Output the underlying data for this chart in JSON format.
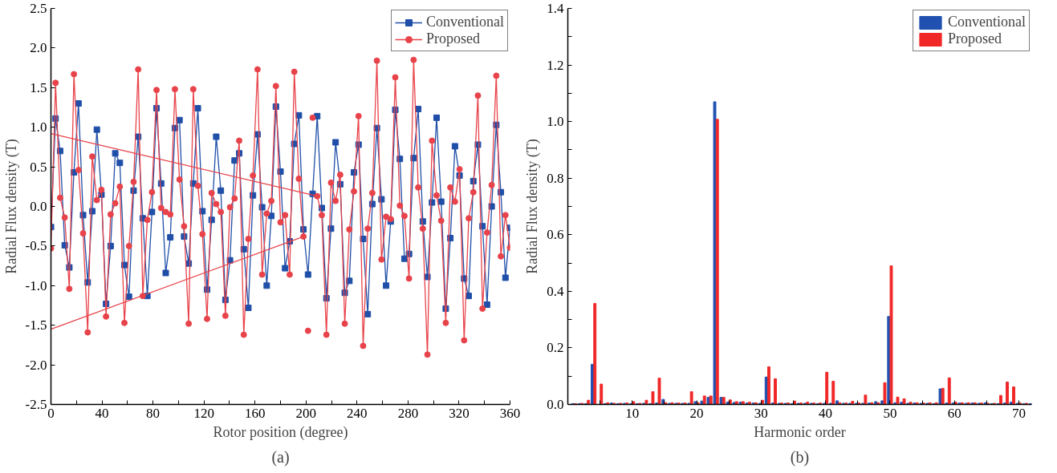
{
  "chart_data": [
    {
      "type": "line",
      "xlabel": "Rotor position (degree)",
      "ylabel": "Radial Flux density (T)",
      "annotations": [
        "(a)"
      ],
      "xlim": [
        0,
        360
      ],
      "ylim": [
        -2.5,
        2.5
      ],
      "xticks": [
        0,
        {
          "value": 20,
          "label": null
        },
        40,
        {
          "value": 60,
          "label": null
        },
        80,
        {
          "value": 100,
          "label": null
        },
        120,
        {
          "value": 140,
          "label": null
        },
        160,
        {
          "value": 180,
          "label": null
        },
        200,
        {
          "value": 220,
          "label": null
        },
        240,
        {
          "value": 260,
          "label": null
        },
        280,
        {
          "value": 300,
          "label": null
        },
        320,
        {
          "value": 340,
          "label": null
        },
        360
      ],
      "yticks": [
        {
          "value": -2.5,
          "label": "-2.5"
        },
        {
          "value": -2.0,
          "label": "-2.0"
        },
        {
          "value": -1.5,
          "label": "-1.5"
        },
        {
          "value": -1.0,
          "label": "-1.0"
        },
        {
          "value": -0.5,
          "label": "-0.5"
        },
        {
          "value": 0,
          "label": "0.0"
        },
        {
          "value": 0.5,
          "label": "0.5"
        },
        {
          "value": 1.0,
          "label": "1.0"
        },
        {
          "value": 1.5,
          "label": "1.5"
        },
        {
          "value": 2.0,
          "label": "2.0"
        },
        {
          "value": 2.5,
          "label": "2.5"
        }
      ],
      "grid": false,
      "legend": "top right",
      "x": [
        0,
        3.6,
        7.2,
        10.8,
        14.4,
        18,
        21.6,
        25.2,
        28.8,
        32.4,
        36,
        39.6,
        43.2,
        46.8,
        50.4,
        54,
        57.6,
        61.2,
        64.8,
        68.4,
        72,
        75.6,
        79.2,
        82.8,
        86.4,
        90,
        93.6,
        97.2,
        100.8,
        104.4,
        108,
        111.6,
        115.2,
        118.8,
        122.4,
        126,
        129.6,
        133.2,
        136.8,
        140.4,
        144,
        147.6,
        151.2,
        154.8,
        158.4,
        162,
        165.6,
        169.2,
        172.8,
        176.4,
        180,
        183.6,
        187.2,
        190.8,
        194.4,
        198,
        201.6,
        205.2,
        208.8,
        212.4,
        216,
        219.6,
        223.2,
        226.8,
        230.4,
        234,
        237.6,
        241.2,
        244.8,
        248.4,
        252,
        255.6,
        259.2,
        262.8,
        266.4,
        270,
        273.6,
        277.2,
        280.8,
        284.4,
        288,
        291.6,
        295.2,
        298.8,
        302.4,
        306,
        309.6,
        313.2,
        316.8,
        320.4,
        324,
        327.6,
        331.2,
        334.8,
        338.4,
        342,
        345.6,
        349.2,
        352.8,
        356.4,
        360
      ],
      "series": [
        {
          "name": "Conventional",
          "color": "#1f4fa8",
          "marker": "square",
          "values": [
            -0.26,
            1.11,
            0.7,
            -0.49,
            -0.77,
            0.43,
            1.3,
            -0.11,
            -0.96,
            -0.06,
            0.97,
            0.15,
            -1.23,
            -0.5,
            0.67,
            0.55,
            -0.74,
            -1.14,
            0.2,
            0.88,
            -0.15,
            -1.13,
            -0.07,
            1.24,
            0.29,
            -0.84,
            -0.39,
            0.99,
            1.09,
            -0.38,
            -0.72,
            0.29,
            1.24,
            -0.06,
            -1.05,
            -0.17,
            0.88,
            0.2,
            -1.18,
            -0.68,
            0.58,
            0.67,
            -0.54,
            -1.28,
            0.14,
            0.91,
            -0.01,
            -1.0,
            -0.12,
            1.26,
            0.44,
            -0.78,
            -0.44,
            0.79,
            1.15,
            -0.29,
            -0.86,
            0.16,
            1.14,
            -0.02,
            -1.16,
            -0.28,
            0.81,
            0.28,
            -1.09,
            -0.94,
            0.43,
            0.78,
            -0.41,
            -1.36,
            0.03,
            0.99,
            0.09,
            -1.0,
            -0.19,
            1.22,
            0.6,
            -0.66,
            -0.6,
            0.61,
            1.23,
            -0.19,
            -0.89,
            0.05,
            1.12,
            0.06,
            -1.29,
            -0.4,
            0.76,
            0.39,
            -0.91,
            -1.13,
            0.32,
            0.78,
            -0.25,
            -1.24,
            0.0,
            1.03,
            0.18,
            -0.9,
            -0.27
          ]
        },
        {
          "name": "Proposed",
          "color": "#e8434a",
          "marker": "circle",
          "values": [
            -0.53,
            1.56,
            0.11,
            -0.14,
            -1.04,
            1.67,
            0.46,
            -0.34,
            -1.59,
            0.63,
            0.08,
            0.21,
            -1.39,
            -0.1,
            0.04,
            0.25,
            -1.47,
            -0.5,
            0.31,
            1.73,
            -1.13,
            -0.17,
            0.18,
            1.47,
            -0.02,
            -0.07,
            -0.1,
            1.48,
            0.34,
            -0.25,
            -1.48,
            1.48,
            0.26,
            -0.35,
            -1.42,
            0.17,
            0.03,
            -0.07,
            -1.38,
            -0.01,
            0.1,
            0.83,
            -1.62,
            -0.41,
            0.39,
            1.73,
            -0.86,
            -0.09,
            0.07,
            1.52,
            -0.2,
            -0.11,
            -0.86,
            1.7,
            0.35,
            -0.38,
            null,
            null,
            0.13,
            -0.11,
            -1.62,
            0.3,
            0.07,
            0.4,
            -1.48,
            -0.29,
            0.19,
            1.14,
            -1.76,
            -0.28,
            0.17,
            1.84,
            -0.67,
            -0.13,
            -0.16,
            1.63,
            0.01,
            -0.12,
            -0.91,
            1.85,
            0.24,
            -0.28,
            -1.87,
            0.83,
            0.14,
            -0.18,
            -1.47,
            0.24,
            0.06,
            0.47,
            -1.69,
            -0.15,
            0.18,
            1.4,
            -1.29,
            -0.33,
            0.27,
            1.65,
            -0.63,
            -0.11,
            -0.52
          ]
        },
        {
          "type": "scatter",
          "color": "#e8434a",
          "marker": "circle",
          "x": [
            201.6,
            205.2
          ],
          "values": [
            -1.57,
            1.12
          ]
        },
        {
          "type": "line",
          "color": "#e8434a",
          "marker": "none",
          "x": [
            0,
            208.8
          ],
          "values": [
            0.92,
            0.13
          ]
        },
        {
          "type": "line",
          "color": "#e8434a",
          "marker": "none",
          "x": [
            0,
            198
          ],
          "values": [
            -1.55,
            -0.38
          ]
        }
      ]
    },
    {
      "type": "bar",
      "xlabel": "Harmonic order",
      "ylabel": "Radial Flux density (T)",
      "annotations": [
        "(b)"
      ],
      "xlim": [
        0,
        72
      ],
      "ylim": [
        0,
        1.4
      ],
      "xticks": [
        {
          "value": 5,
          "label": null
        },
        10,
        {
          "value": 15,
          "label": null
        },
        20,
        {
          "value": 25,
          "label": null
        },
        30,
        {
          "value": 35,
          "label": null
        },
        40,
        {
          "value": 45,
          "label": null
        },
        50,
        {
          "value": 55,
          "label": null
        },
        60,
        {
          "value": 65,
          "label": null
        },
        70
      ],
      "yticks": [
        {
          "value": 0,
          "label": "0.0"
        },
        {
          "value": 0.1,
          "label": null
        },
        0.2,
        {
          "value": 0.3,
          "label": null
        },
        0.4,
        {
          "value": 0.5,
          "label": null
        },
        0.6,
        {
          "value": 0.7,
          "label": null
        },
        0.8,
        {
          "value": 0.9,
          "label": null
        },
        {
          "value": 1.0,
          "label": "1.0"
        },
        {
          "value": 1.1,
          "label": null
        },
        1.2,
        {
          "value": 1.3,
          "label": null
        },
        1.4
      ],
      "grid": false,
      "legend": "top right",
      "x": [
        1,
        2,
        3,
        4,
        5,
        6,
        7,
        8,
        9,
        10,
        11,
        12,
        13,
        14,
        15,
        16,
        17,
        18,
        19,
        20,
        21,
        22,
        23,
        24,
        25,
        26,
        27,
        28,
        29,
        30,
        31,
        32,
        33,
        34,
        35,
        36,
        37,
        38,
        39,
        40,
        41,
        42,
        43,
        44,
        45,
        46,
        47,
        48,
        49,
        50,
        51,
        52,
        53,
        54,
        55,
        56,
        57,
        58,
        59,
        60,
        61,
        62,
        63,
        64,
        65,
        66,
        67,
        68,
        69,
        70,
        71,
        72
      ],
      "series": [
        {
          "name": "Conventional",
          "color": "#2050b0",
          "values": [
            0.003,
            0.003,
            0.003,
            0.142,
            null,
            0.003,
            0.005,
            0.003,
            0.004,
            0.003,
            0.003,
            0.004,
            0.003,
            0.005,
            0.018,
            0.004,
            0.004,
            0.004,
            0.004,
            0.01,
            0.012,
            0.025,
            1.07,
            0.025,
            0.008,
            0.007,
            0.008,
            0.005,
            0.005,
            0.004,
            0.097,
            0.005,
            0.004,
            0.004,
            0.003,
            0.004,
            0.004,
            0.004,
            0.003,
            0.004,
            0.004,
            0.013,
            0.004,
            0.004,
            0.004,
            0.004,
            0.005,
            0.01,
            0.013,
            0.311,
            0.006,
            0.008,
            0.004,
            0.005,
            0.004,
            0.004,
            0.003,
            0.055,
            0.005,
            0.005,
            0.005,
            0.004,
            0.005,
            0.004,
            0.006,
            0.003,
            0.003,
            0.005,
            0.008,
            0.004,
            0.003,
            0.003
          ]
        },
        {
          "name": "Proposed",
          "color": "#f02828",
          "values": [
            0.003,
            0.004,
            0.015,
            0.357,
            0.072,
            0.006,
            0.004,
            0.004,
            0.005,
            0.01,
            0.004,
            0.015,
            0.045,
            0.093,
            0.006,
            0.006,
            0.005,
            0.005,
            0.045,
            0.006,
            0.03,
            0.03,
            1.008,
            0.025,
            0.016,
            0.01,
            0.01,
            0.008,
            0.006,
            0.015,
            0.133,
            0.091,
            0.005,
            0.005,
            0.012,
            0.005,
            0.008,
            0.005,
            0.005,
            0.114,
            0.082,
            0.006,
            0.005,
            0.011,
            0.005,
            0.033,
            0.006,
            0.006,
            0.077,
            0.49,
            0.026,
            0.02,
            0.008,
            0.006,
            0.005,
            0.006,
            0.006,
            0.057,
            0.094,
            0.008,
            0.006,
            0.006,
            0.006,
            0.005,
            0.004,
            0.004,
            0.032,
            0.079,
            0.062,
            0.005,
            0.004,
            null
          ]
        }
      ]
    }
  ]
}
